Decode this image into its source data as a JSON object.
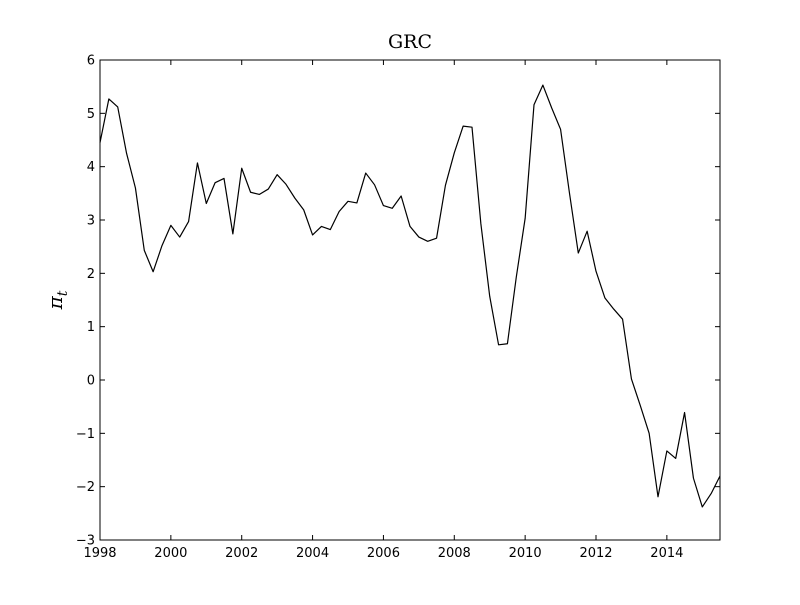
{
  "chart_data": {
    "type": "line",
    "title": "GRC",
    "xlabel": "",
    "ylabel": "π_t",
    "ylabel_main": "π",
    "ylabel_sub": "t",
    "xlim": [
      1998,
      2015.5
    ],
    "ylim": [
      -3,
      6
    ],
    "xticks": [
      1998,
      2000,
      2002,
      2004,
      2006,
      2008,
      2010,
      2012,
      2014
    ],
    "xtick_labels": [
      "1998",
      "2000",
      "2002",
      "2004",
      "2006",
      "2008",
      "2010",
      "2012",
      "2014"
    ],
    "yticks": [
      -3,
      -2,
      -1,
      0,
      1,
      2,
      3,
      4,
      5,
      6
    ],
    "ytick_labels": [
      "−3",
      "−2",
      "−1",
      "0",
      "1",
      "2",
      "3",
      "4",
      "5",
      "6"
    ],
    "grid": false,
    "line_color": "#000000",
    "series": [
      {
        "x": [
          1998.0,
          1998.25,
          1998.5,
          1998.75,
          1999.0,
          1999.25,
          1999.5,
          1999.75,
          2000.0,
          2000.25,
          2000.5,
          2000.75,
          2001.0,
          2001.25,
          2001.5,
          2001.75,
          2002.0,
          2002.25,
          2002.5,
          2002.75,
          2003.0,
          2003.25,
          2003.5,
          2003.75,
          2004.0,
          2004.25,
          2004.5,
          2004.75,
          2005.0,
          2005.25,
          2005.5,
          2005.75,
          2006.0,
          2006.25,
          2006.5,
          2006.75,
          2007.0,
          2007.25,
          2007.5,
          2007.75,
          2008.0,
          2008.25,
          2008.5,
          2008.75,
          2009.0,
          2009.25,
          2009.5,
          2009.75,
          2010.0,
          2010.25,
          2010.5,
          2010.75,
          2011.0,
          2011.25,
          2011.5,
          2011.75,
          2012.0,
          2012.25,
          2012.5,
          2012.75,
          2013.0,
          2013.25,
          2013.5,
          2013.75,
          2014.0,
          2014.25,
          2014.5,
          2014.75,
          2015.0,
          2015.25,
          2015.5
        ],
        "values": [
          4.45,
          5.27,
          5.12,
          4.25,
          3.6,
          2.43,
          2.03,
          2.52,
          2.9,
          2.68,
          2.97,
          4.07,
          3.31,
          3.7,
          3.78,
          2.74,
          3.97,
          3.52,
          3.48,
          3.58,
          3.85,
          3.67,
          3.41,
          3.19,
          2.72,
          2.88,
          2.82,
          3.16,
          3.35,
          3.32,
          3.88,
          3.66,
          3.27,
          3.22,
          3.45,
          2.88,
          2.68,
          2.6,
          2.66,
          3.65,
          4.26,
          4.76,
          4.74,
          2.93,
          1.57,
          0.66,
          0.68,
          1.93,
          3.03,
          5.16,
          5.53,
          5.1,
          4.7,
          3.51,
          2.38,
          2.79,
          2.04,
          1.54,
          1.33,
          1.14,
          0.02,
          -0.48,
          -1.0,
          -2.19,
          -1.33,
          -1.47,
          -0.61,
          -1.84,
          -2.38,
          -2.13,
          -1.8
        ]
      }
    ]
  }
}
